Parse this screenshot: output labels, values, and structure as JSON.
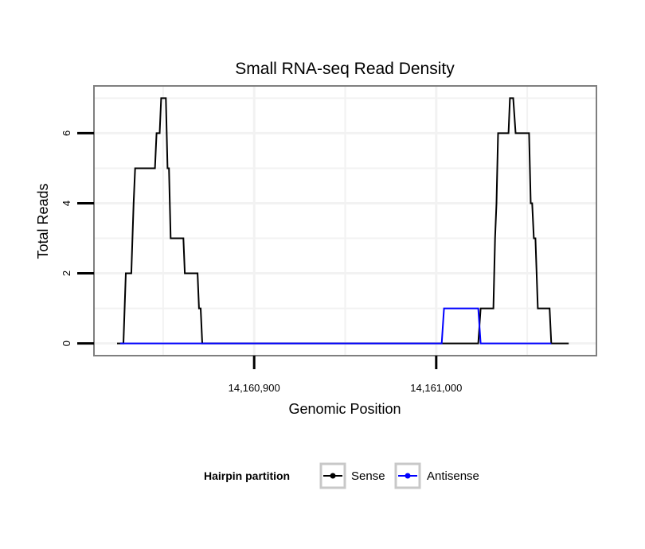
{
  "chart_data": {
    "type": "line",
    "title": "Small RNA-seq Read Density",
    "xlabel": "Genomic Position",
    "ylabel": "Total Reads",
    "xlim": [
      14160812,
      14161088
    ],
    "ylim": [
      -0.35,
      7.35
    ],
    "x_ticks": [
      {
        "value": 14160900,
        "label": "14,160,900"
      },
      {
        "value": 14161000,
        "label": "14,161,000"
      }
    ],
    "y_ticks": [
      {
        "value": 0,
        "label": "0"
      },
      {
        "value": 2,
        "label": "2"
      },
      {
        "value": 4,
        "label": "4"
      },
      {
        "value": 6,
        "label": "6"
      }
    ],
    "grid": true,
    "legend": {
      "title": "Hairpin partition",
      "placement": "bottom",
      "entries": [
        "Sense",
        "Antisense"
      ]
    },
    "series": [
      {
        "name": "Sense",
        "color": "#000000",
        "points": [
          [
            14160824.7,
            0
          ],
          [
            14160828.2,
            0
          ],
          [
            14160829.5,
            2
          ],
          [
            14160832.5,
            2
          ],
          [
            14160833.8,
            4
          ],
          [
            14160834.6,
            5
          ],
          [
            14160845.5,
            5
          ],
          [
            14160846.4,
            6
          ],
          [
            14160848.1,
            6
          ],
          [
            14160848.9,
            7
          ],
          [
            14160851.5,
            7
          ],
          [
            14160852.4,
            5
          ],
          [
            14160853.2,
            5
          ],
          [
            14160854.1,
            3
          ],
          [
            14160861.1,
            3
          ],
          [
            14160861.9,
            2
          ],
          [
            14160868.9,
            2
          ],
          [
            14160869.7,
            1
          ],
          [
            14160870.6,
            1
          ],
          [
            14160871.5,
            0
          ],
          [
            14161023.1,
            0
          ],
          [
            14161024.4,
            1
          ],
          [
            14161031.4,
            1
          ],
          [
            14161032.3,
            3
          ],
          [
            14161033.1,
            4
          ],
          [
            14161034.0,
            6
          ],
          [
            14161039.7,
            6
          ],
          [
            14161040.5,
            7
          ],
          [
            14161042.3,
            7
          ],
          [
            14161043.6,
            6
          ],
          [
            14161051.0,
            6
          ],
          [
            14161051.9,
            4
          ],
          [
            14161052.7,
            4
          ],
          [
            14161053.6,
            3
          ],
          [
            14161054.5,
            3
          ],
          [
            14161055.8,
            1
          ],
          [
            14161062.3,
            1
          ],
          [
            14161063.2,
            0
          ],
          [
            14161072.8,
            0
          ]
        ]
      },
      {
        "name": "Antisense",
        "color": "#0000ff",
        "points": [
          [
            14160826.4,
            0
          ],
          [
            14160871.5,
            0
          ],
          [
            14161003.0,
            0
          ],
          [
            14161004.3,
            1
          ],
          [
            14161023.1,
            1
          ],
          [
            14161024.4,
            0
          ],
          [
            14161063.2,
            0
          ]
        ]
      }
    ]
  }
}
